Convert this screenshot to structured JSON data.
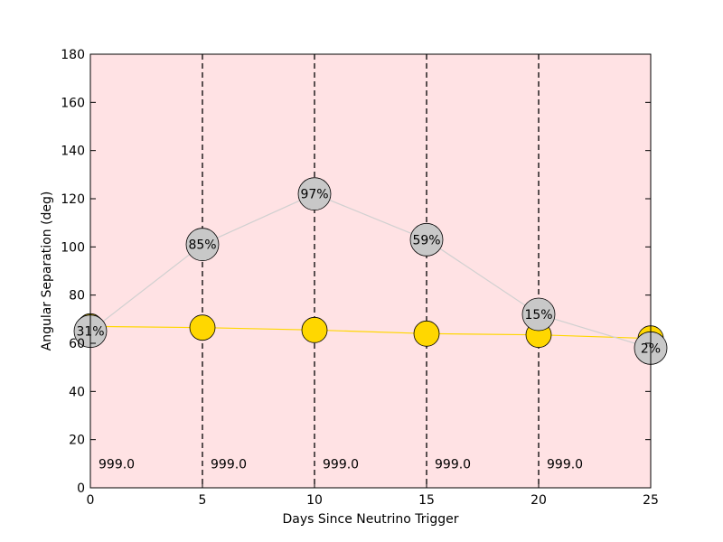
{
  "chart_data": {
    "type": "scatter",
    "xlabel": "Days Since Neutrino Trigger",
    "ylabel": "Angular Separation (deg)",
    "xlim": [
      0,
      25
    ],
    "ylim": [
      0,
      180
    ],
    "xticks": [
      "0",
      "5",
      "10",
      "15",
      "20",
      "25"
    ],
    "yticks": [
      "0",
      "20",
      "40",
      "60",
      "80",
      "100",
      "120",
      "140",
      "160",
      "180"
    ],
    "background_color": "#ffe2e4",
    "series": [
      {
        "color": "#ffd700",
        "line_color": "#ffd700",
        "x": [
          0,
          5,
          10,
          15,
          20,
          25
        ],
        "y": [
          67,
          66.5,
          65.5,
          64,
          63.5,
          62
        ]
      },
      {
        "color": "#c8c8c8",
        "line_color": "#d0d0d0",
        "x": [
          0,
          5,
          10,
          15,
          20,
          25
        ],
        "y": [
          65,
          101,
          122,
          103,
          72,
          58
        ],
        "labels": [
          "31%",
          "85%",
          "97%",
          "59%",
          "15%",
          "2%"
        ]
      }
    ],
    "vlines": {
      "x": [
        5,
        10,
        15,
        20
      ],
      "style": "dashed",
      "color": "#000000"
    },
    "annotations": [
      {
        "x": 0,
        "y": 10,
        "text": "999.0"
      },
      {
        "x": 5,
        "y": 10,
        "text": "999.0"
      },
      {
        "x": 10,
        "y": 10,
        "text": "999.0"
      },
      {
        "x": 15,
        "y": 10,
        "text": "999.0"
      },
      {
        "x": 20,
        "y": 10,
        "text": "999.0"
      }
    ]
  }
}
